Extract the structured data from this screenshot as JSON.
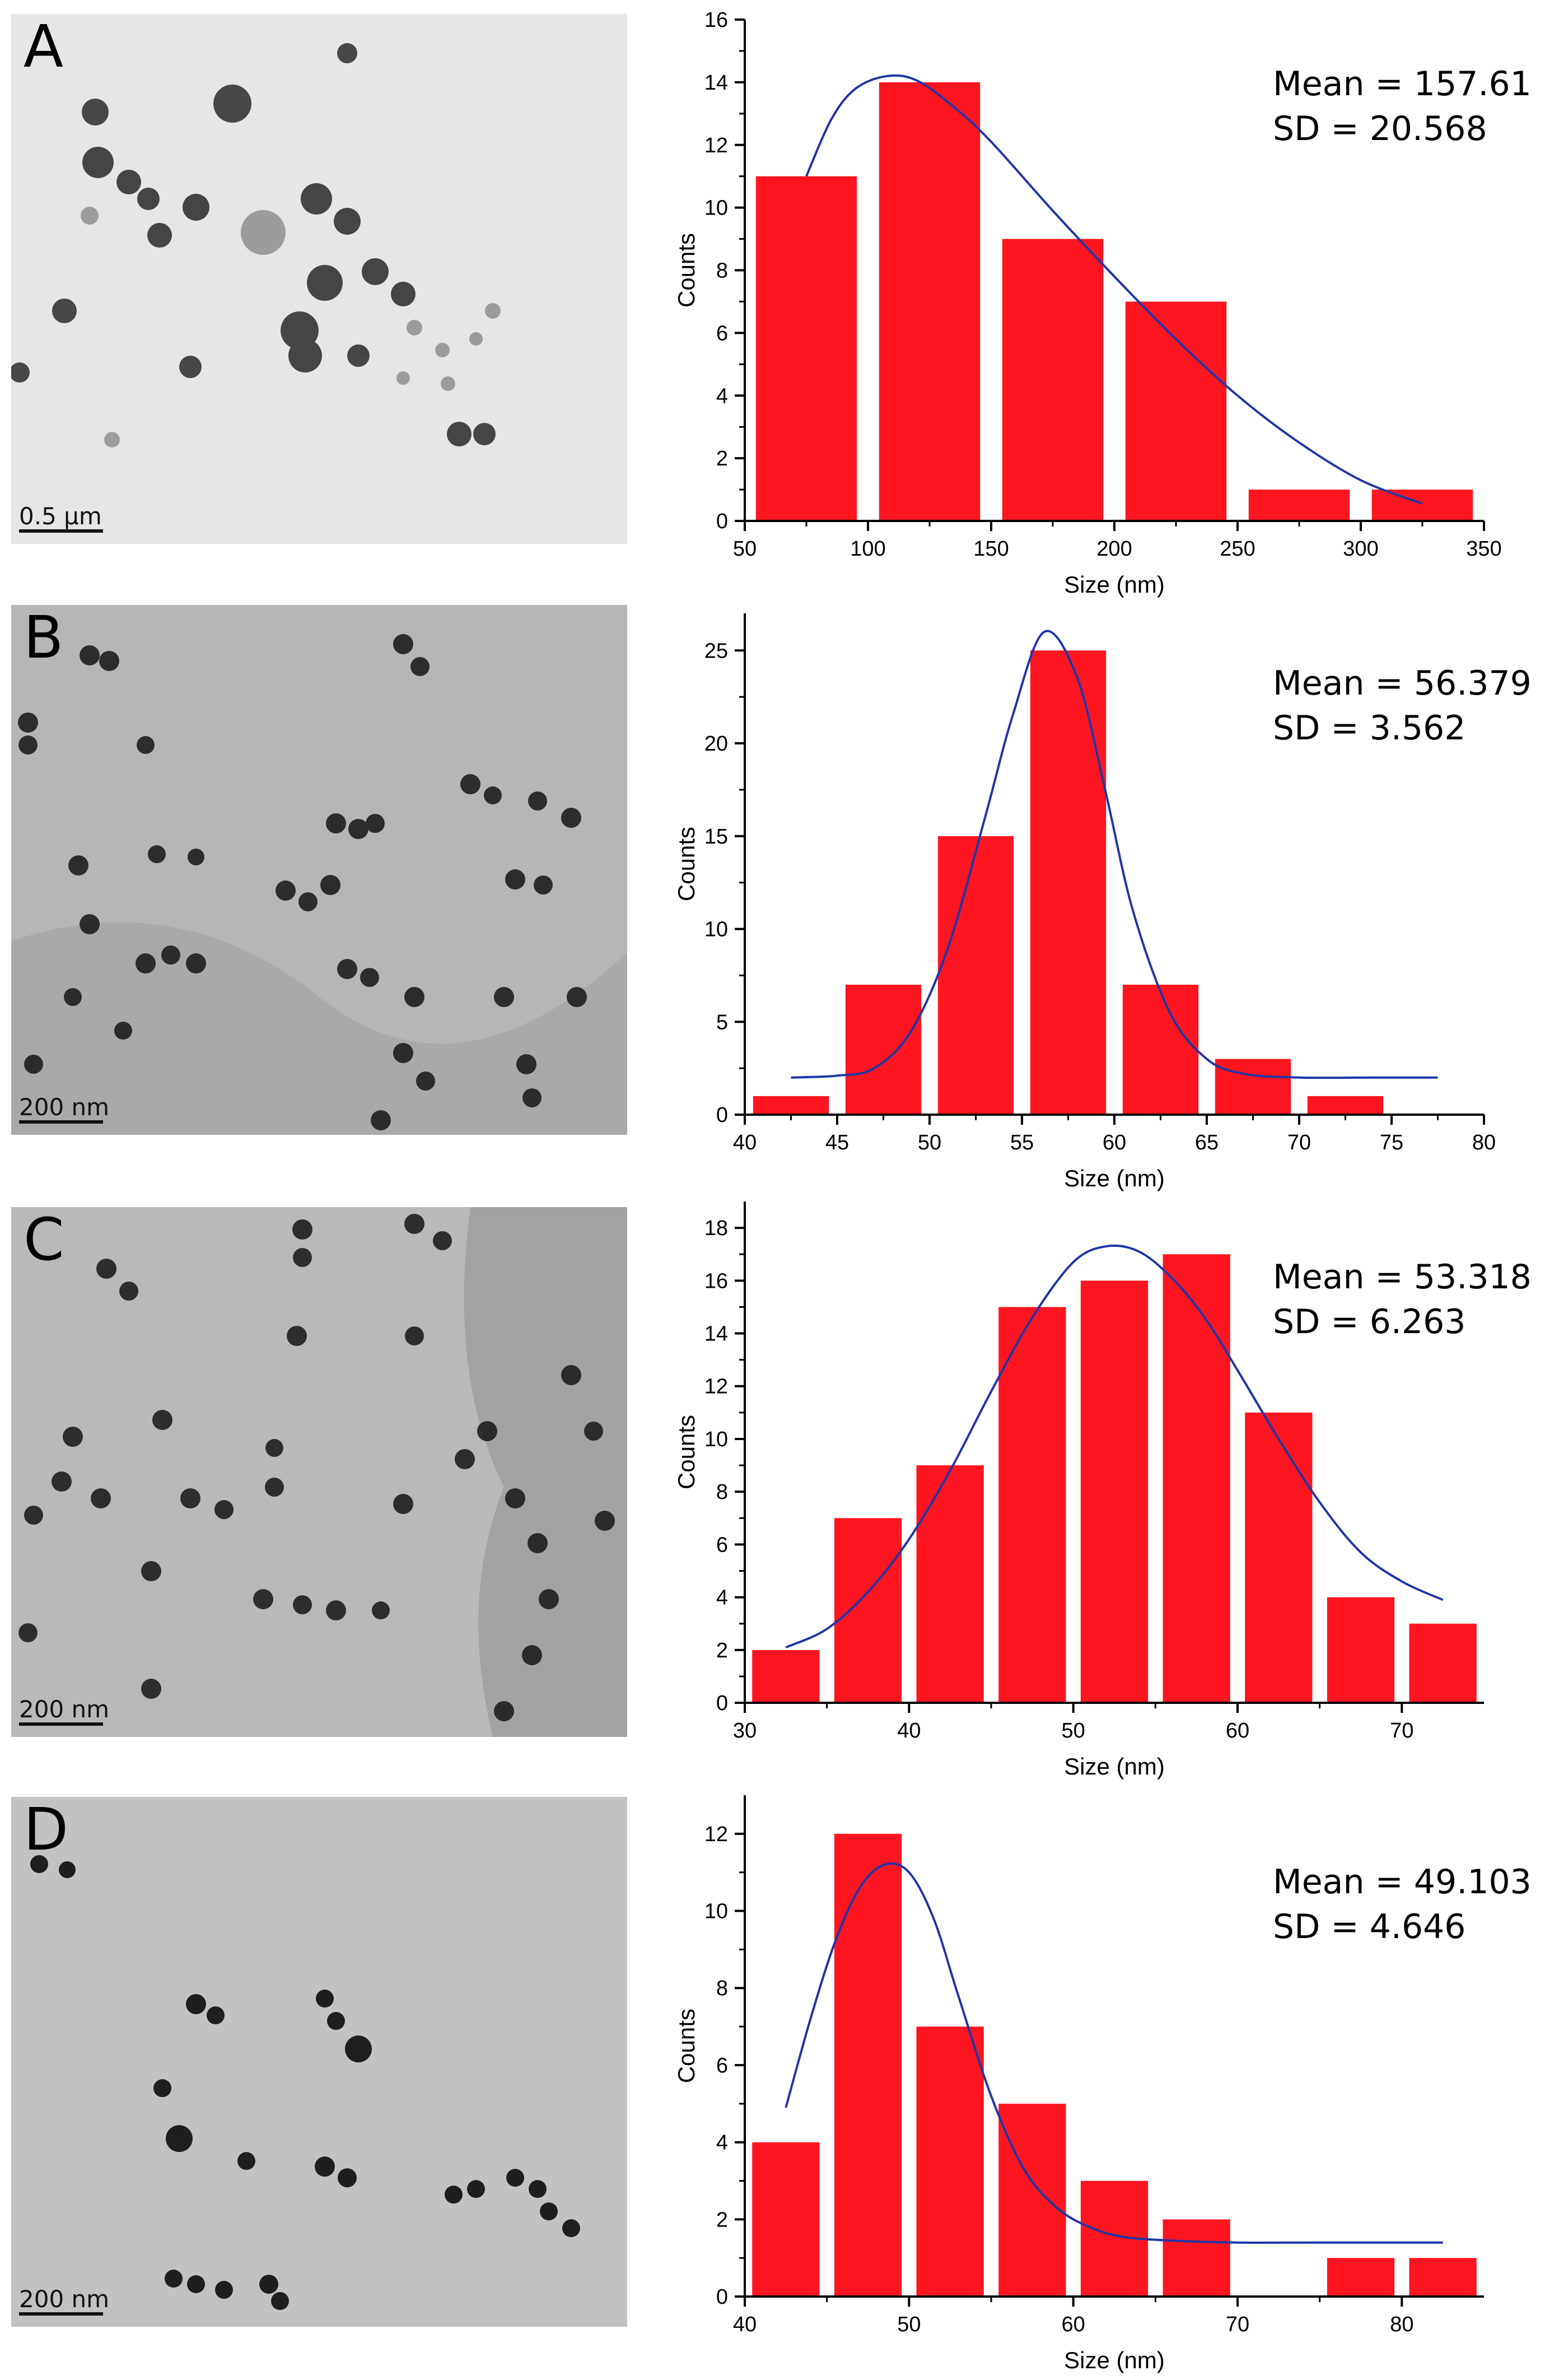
{
  "accent": {
    "bar": "#ff1520",
    "curve": "#1f35a8",
    "axis": "#000000"
  },
  "panels": [
    {
      "letter": "A",
      "scale_label": "0.5 μm",
      "stats": {
        "mean": "Mean = 157.61",
        "sd": "SD = 20.568"
      },
      "chart_data": {
        "type": "bar",
        "xlabel": "Size (nm)",
        "ylabel": "Counts",
        "xlim": [
          50,
          350
        ],
        "ylim": [
          0,
          16
        ],
        "xticks": [
          50,
          100,
          150,
          200,
          250,
          300,
          350
        ],
        "yticks": [
          0,
          2,
          4,
          6,
          8,
          10,
          12,
          14,
          16
        ],
        "bins": [
          {
            "x0": 50,
            "x1": 100,
            "value": 11
          },
          {
            "x0": 100,
            "x1": 150,
            "value": 14
          },
          {
            "x0": 150,
            "x1": 200,
            "value": 9
          },
          {
            "x0": 200,
            "x1": 250,
            "value": 7
          },
          {
            "x0": 250,
            "x1": 300,
            "value": 1
          },
          {
            "x0": 300,
            "x1": 350,
            "value": 1
          }
        ],
        "fit_curve": [
          [
            75,
            11
          ],
          [
            85,
            12.8
          ],
          [
            95,
            13.8
          ],
          [
            108,
            14.2
          ],
          [
            120,
            14.05
          ],
          [
            135,
            13.2
          ],
          [
            150,
            12.1
          ],
          [
            175,
            9.9
          ],
          [
            200,
            7.8
          ],
          [
            225,
            5.8
          ],
          [
            250,
            4.0
          ],
          [
            275,
            2.5
          ],
          [
            300,
            1.3
          ],
          [
            325,
            0.55
          ]
        ]
      }
    },
    {
      "letter": "B",
      "scale_label": "200 nm",
      "stats": {
        "mean": "Mean = 56.379",
        "sd": "SD = 3.562"
      },
      "chart_data": {
        "type": "bar",
        "xlabel": "Size (nm)",
        "ylabel": "Counts",
        "xlim": [
          40,
          80
        ],
        "ylim": [
          0,
          27
        ],
        "xticks": [
          40,
          45,
          50,
          55,
          60,
          65,
          70,
          75,
          80
        ],
        "yticks": [
          0,
          5,
          10,
          15,
          20,
          25
        ],
        "bins": [
          {
            "x0": 40,
            "x1": 45,
            "value": 1
          },
          {
            "x0": 45,
            "x1": 50,
            "value": 7
          },
          {
            "x0": 50,
            "x1": 55,
            "value": 15
          },
          {
            "x0": 55,
            "x1": 60,
            "value": 25
          },
          {
            "x0": 60,
            "x1": 65,
            "value": 7
          },
          {
            "x0": 65,
            "x1": 70,
            "value": 3
          },
          {
            "x0": 70,
            "x1": 75,
            "value": 1
          }
        ],
        "fit_curve": [
          [
            42.5,
            2.0
          ],
          [
            45,
            2.1
          ],
          [
            47,
            2.5
          ],
          [
            49,
            4.5
          ],
          [
            51,
            9.0
          ],
          [
            53,
            16.0
          ],
          [
            54.5,
            21.5
          ],
          [
            56.2,
            26.0
          ],
          [
            58,
            23.5
          ],
          [
            59.5,
            17.5
          ],
          [
            61,
            11.0
          ],
          [
            63,
            5.5
          ],
          [
            65,
            3.0
          ],
          [
            67,
            2.2
          ],
          [
            70,
            2.0
          ],
          [
            74,
            2.0
          ],
          [
            77.5,
            2.0
          ]
        ]
      }
    },
    {
      "letter": "C",
      "scale_label": "200 nm",
      "stats": {
        "mean": "Mean = 53.318",
        "sd": "SD = 6.263"
      },
      "chart_data": {
        "type": "bar",
        "xlabel": "Size (nm)",
        "ylabel": "Counts",
        "xlim": [
          30,
          75
        ],
        "ylim": [
          0,
          19
        ],
        "xticks": [
          30,
          40,
          50,
          60,
          70
        ],
        "yticks": [
          0,
          2,
          4,
          6,
          8,
          10,
          12,
          14,
          16,
          18
        ],
        "bins": [
          {
            "x0": 30,
            "x1": 35,
            "value": 2
          },
          {
            "x0": 35,
            "x1": 40,
            "value": 7
          },
          {
            "x0": 40,
            "x1": 45,
            "value": 9
          },
          {
            "x0": 45,
            "x1": 50,
            "value": 15
          },
          {
            "x0": 50,
            "x1": 55,
            "value": 16
          },
          {
            "x0": 55,
            "x1": 60,
            "value": 17
          },
          {
            "x0": 60,
            "x1": 65,
            "value": 11
          },
          {
            "x0": 65,
            "x1": 70,
            "value": 4
          },
          {
            "x0": 70,
            "x1": 75,
            "value": 3
          }
        ],
        "fit_curve": [
          [
            32.5,
            2.1
          ],
          [
            35,
            2.8
          ],
          [
            37.5,
            4.2
          ],
          [
            40,
            6.2
          ],
          [
            42.5,
            8.8
          ],
          [
            45,
            11.8
          ],
          [
            47.5,
            14.6
          ],
          [
            50,
            16.7
          ],
          [
            52,
            17.3
          ],
          [
            54,
            17.1
          ],
          [
            56,
            16.1
          ],
          [
            58,
            14.6
          ],
          [
            60,
            12.6
          ],
          [
            62.5,
            10.0
          ],
          [
            65,
            7.6
          ],
          [
            67.5,
            5.7
          ],
          [
            70,
            4.6
          ],
          [
            72.5,
            3.9
          ]
        ]
      }
    },
    {
      "letter": "D",
      "scale_label": "200 nm",
      "stats": {
        "mean": "Mean = 49.103",
        "sd": "SD = 4.646"
      },
      "chart_data": {
        "type": "bar",
        "xlabel": "Size (nm)",
        "ylabel": "Counts",
        "xlim": [
          40,
          85
        ],
        "ylim": [
          0,
          13
        ],
        "xticks": [
          40,
          50,
          60,
          70,
          80
        ],
        "yticks": [
          0,
          2,
          4,
          6,
          8,
          10,
          12
        ],
        "bins": [
          {
            "x0": 40,
            "x1": 45,
            "value": 4
          },
          {
            "x0": 45,
            "x1": 50,
            "value": 12
          },
          {
            "x0": 50,
            "x1": 55,
            "value": 7
          },
          {
            "x0": 55,
            "x1": 60,
            "value": 5
          },
          {
            "x0": 60,
            "x1": 65,
            "value": 3
          },
          {
            "x0": 65,
            "x1": 70,
            "value": 2
          },
          {
            "x0": 70,
            "x1": 75,
            "value": 0
          },
          {
            "x0": 75,
            "x1": 80,
            "value": 1
          },
          {
            "x0": 80,
            "x1": 85,
            "value": 1
          }
        ],
        "fit_curve": [
          [
            42.5,
            4.9
          ],
          [
            44,
            7.2
          ],
          [
            45.5,
            9.2
          ],
          [
            47,
            10.6
          ],
          [
            48.5,
            11.2
          ],
          [
            50,
            11.0
          ],
          [
            51.5,
            9.8
          ],
          [
            53,
            7.8
          ],
          [
            55,
            5.2
          ],
          [
            57,
            3.3
          ],
          [
            59,
            2.3
          ],
          [
            61,
            1.8
          ],
          [
            63,
            1.55
          ],
          [
            66,
            1.45
          ],
          [
            70,
            1.4
          ],
          [
            75,
            1.4
          ],
          [
            82.5,
            1.4
          ]
        ]
      }
    }
  ]
}
